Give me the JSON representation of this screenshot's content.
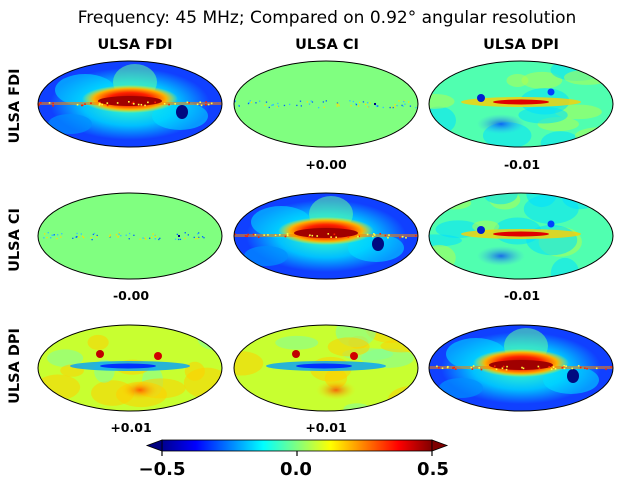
{
  "chart_data": {
    "type": "heatmap",
    "title": "Frequency: 45 MHz; Compared on 0.92° angular resolution",
    "columns": [
      "ULSA FDI",
      "ULSA CI",
      "ULSA DPI"
    ],
    "rows": [
      "ULSA FDI",
      "ULSA CI",
      "ULSA DPI"
    ],
    "cells": [
      {
        "row": 0,
        "col": 0,
        "kind": "map",
        "label": ""
      },
      {
        "row": 0,
        "col": 1,
        "kind": "difference",
        "label": "+0.00"
      },
      {
        "row": 0,
        "col": 2,
        "kind": "difference",
        "label": "-0.01"
      },
      {
        "row": 1,
        "col": 0,
        "kind": "difference",
        "label": "-0.00"
      },
      {
        "row": 1,
        "col": 1,
        "kind": "map",
        "label": ""
      },
      {
        "row": 1,
        "col": 2,
        "kind": "difference",
        "label": "-0.01"
      },
      {
        "row": 2,
        "col": 0,
        "kind": "difference",
        "label": "+0.01"
      },
      {
        "row": 2,
        "col": 1,
        "kind": "difference",
        "label": "+0.01"
      },
      {
        "row": 2,
        "col": 2,
        "kind": "map",
        "label": ""
      }
    ],
    "colorbar": {
      "colormap": "jet",
      "range": [
        -0.5,
        0.5
      ],
      "ticks": [
        "−0.5",
        "0.0",
        "0.5"
      ],
      "extend": "both"
    }
  }
}
